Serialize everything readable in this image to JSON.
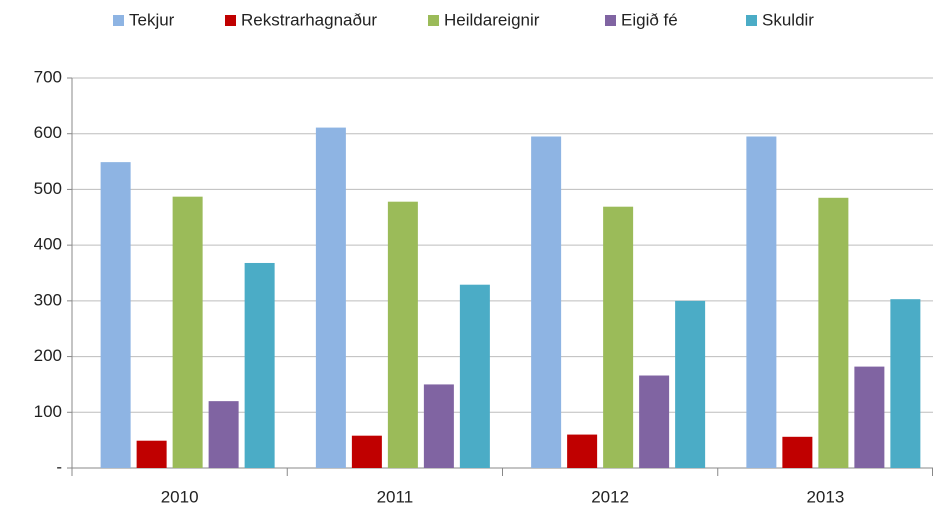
{
  "chart_data": {
    "type": "bar",
    "categories": [
      "2010",
      "2011",
      "2012",
      "2013"
    ],
    "series": [
      {
        "name": "Tekjur",
        "color": "#8EB4E3",
        "values": [
          549,
          611,
          595,
          595
        ]
      },
      {
        "name": "Rekstrarhagnaður",
        "color": "#C00000",
        "values": [
          49,
          58,
          60,
          56
        ]
      },
      {
        "name": "Heildareignir",
        "color": "#9BBB59",
        "values": [
          487,
          478,
          469,
          485
        ]
      },
      {
        "name": "Eigið fé",
        "color": "#8064A2",
        "values": [
          120,
          150,
          166,
          182
        ]
      },
      {
        "name": "Skuldir",
        "color": "#4BACC6",
        "values": [
          368,
          329,
          300,
          303
        ]
      }
    ],
    "ylim": [
      0,
      700
    ],
    "yticks": [
      {
        "value": 0,
        "label": "-"
      },
      100,
      200,
      300,
      400,
      500,
      600,
      700
    ],
    "grid": true,
    "legend": "top"
  }
}
